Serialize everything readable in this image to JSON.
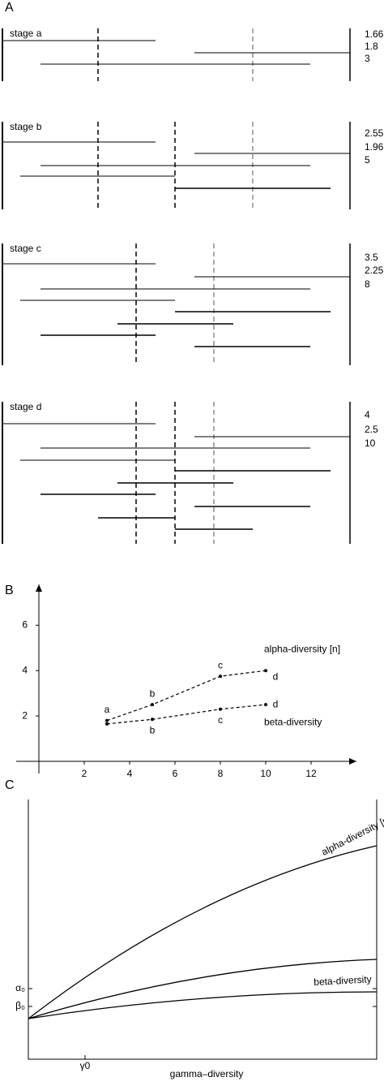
{
  "panel_a": {
    "letter": "A",
    "stages": [
      {
        "label": "stage a",
        "values": [
          1.66,
          1.8,
          3
        ]
      },
      {
        "label": "stage b",
        "values": [
          2.55,
          1.96,
          5
        ]
      },
      {
        "label": "stage c",
        "values": [
          3.5,
          2.25,
          8
        ]
      },
      {
        "label": "stage d",
        "values": [
          4,
          2.5,
          10
        ]
      }
    ]
  },
  "chart_data": {
    "type": "line",
    "letter": "B",
    "x": [
      3,
      5,
      8,
      10
    ],
    "point_labels": [
      "a",
      "b",
      "c",
      "d"
    ],
    "series": [
      {
        "name": "alpha-diversity [n]",
        "color": "#000000",
        "values": [
          1.8,
          2.5,
          3.75,
          4
        ]
      },
      {
        "name": "beta-diversity",
        "color": "#000000",
        "values": [
          1.65,
          1.85,
          2.3,
          2.5
        ]
      }
    ],
    "xlim": [
      0,
      14
    ],
    "ylim": [
      0,
      7.8
    ],
    "xticks": [
      2,
      4,
      6,
      8,
      10,
      12
    ],
    "yticks": [
      2,
      4,
      6
    ]
  },
  "panel_c": {
    "letter": "C",
    "x_label": "gamma–diversity",
    "alpha_tick": "α₀",
    "beta_tick": "β₀",
    "gamma_tick": "γ0",
    "alpha_curve": "alpha-diversity [n]",
    "beta_curve": "beta-diversity"
  }
}
